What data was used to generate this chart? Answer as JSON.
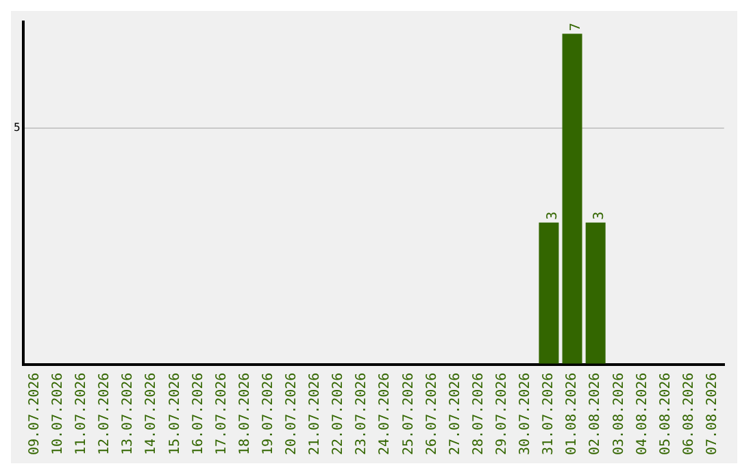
{
  "chart_data": {
    "type": "bar",
    "categories": [
      "09.07.2026",
      "10.07.2026",
      "11.07.2026",
      "12.07.2026",
      "13.07.2026",
      "14.07.2026",
      "15.07.2026",
      "16.07.2026",
      "17.07.2026",
      "18.07.2026",
      "19.07.2026",
      "20.07.2026",
      "21.07.2026",
      "22.07.2026",
      "23.07.2026",
      "24.07.2026",
      "25.07.2026",
      "26.07.2026",
      "27.07.2026",
      "28.07.2026",
      "29.07.2026",
      "30.07.2026",
      "31.07.2026",
      "01.08.2026",
      "02.08.2026",
      "03.08.2026",
      "04.08.2026",
      "05.08.2026",
      "06.08.2026",
      "07.08.2026"
    ],
    "values": [
      null,
      null,
      null,
      null,
      null,
      null,
      null,
      null,
      null,
      null,
      null,
      null,
      null,
      null,
      null,
      null,
      null,
      null,
      null,
      null,
      null,
      null,
      3,
      7,
      3,
      null,
      null,
      null,
      null,
      null
    ],
    "data_labels": true,
    "color": "#336600",
    "ylim": [
      0,
      7.25
    ],
    "yticks": [
      {
        "value": 0,
        "label": null
      },
      5
    ],
    "grid": "y",
    "legend": false
  }
}
